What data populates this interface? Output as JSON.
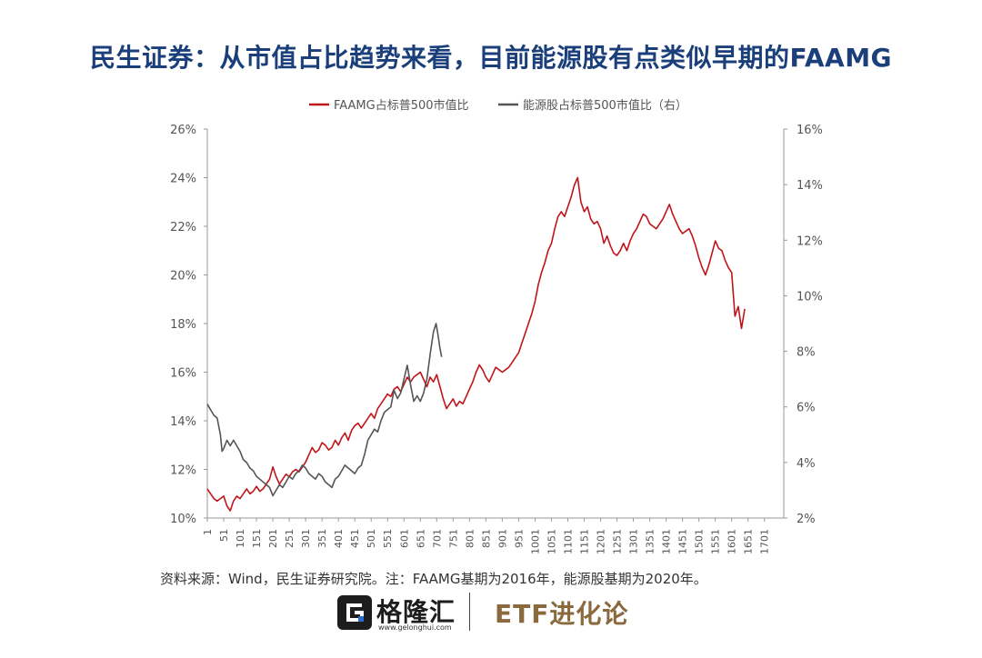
{
  "title": "民生证券：从市值占比趋势来看，目前能源股有点类似早期的FAAMG",
  "source_note": "资料来源：Wind，民生证券研究院。注：FAAMG基期为2016年，能源股基期为2020年。",
  "footer": {
    "logo_text": "格隆汇",
    "logo_url": "www.gelonghui.com",
    "brand_text": "ETF进化论"
  },
  "colors": {
    "faamg": "#c0141b",
    "energy": "#555555",
    "title": "#1b3f7a",
    "brand": "#8a6a3c"
  },
  "chart_data": {
    "type": "line",
    "legend_position": "top",
    "grid": false,
    "series": [
      {
        "name": "FAAMG占标普500市值比",
        "axis": "left",
        "points": [
          [
            1,
            11.2
          ],
          [
            11,
            11.0
          ],
          [
            21,
            10.8
          ],
          [
            31,
            10.7
          ],
          [
            41,
            10.8
          ],
          [
            51,
            10.9
          ],
          [
            61,
            10.5
          ],
          [
            71,
            10.3
          ],
          [
            81,
            10.7
          ],
          [
            91,
            10.9
          ],
          [
            101,
            10.8
          ],
          [
            111,
            11.0
          ],
          [
            121,
            11.2
          ],
          [
            131,
            11.0
          ],
          [
            141,
            11.1
          ],
          [
            151,
            11.3
          ],
          [
            161,
            11.1
          ],
          [
            171,
            11.2
          ],
          [
            181,
            11.4
          ],
          [
            191,
            11.6
          ],
          [
            201,
            12.1
          ],
          [
            211,
            11.7
          ],
          [
            221,
            11.4
          ],
          [
            231,
            11.6
          ],
          [
            241,
            11.8
          ],
          [
            251,
            11.7
          ],
          [
            261,
            11.9
          ],
          [
            271,
            12.0
          ],
          [
            281,
            11.9
          ],
          [
            291,
            12.1
          ],
          [
            301,
            12.3
          ],
          [
            311,
            12.6
          ],
          [
            321,
            12.9
          ],
          [
            331,
            12.7
          ],
          [
            341,
            12.8
          ],
          [
            351,
            13.1
          ],
          [
            361,
            13.0
          ],
          [
            371,
            12.8
          ],
          [
            381,
            12.9
          ],
          [
            391,
            13.2
          ],
          [
            401,
            13.0
          ],
          [
            411,
            13.3
          ],
          [
            421,
            13.5
          ],
          [
            431,
            13.2
          ],
          [
            441,
            13.6
          ],
          [
            451,
            13.8
          ],
          [
            461,
            13.9
          ],
          [
            471,
            13.7
          ],
          [
            481,
            13.9
          ],
          [
            491,
            14.1
          ],
          [
            501,
            14.3
          ],
          [
            511,
            14.1
          ],
          [
            521,
            14.5
          ],
          [
            531,
            14.7
          ],
          [
            541,
            14.9
          ],
          [
            551,
            15.1
          ],
          [
            561,
            15.0
          ],
          [
            571,
            15.3
          ],
          [
            581,
            15.4
          ],
          [
            591,
            15.2
          ],
          [
            601,
            15.5
          ],
          [
            611,
            15.8
          ],
          [
            621,
            15.6
          ],
          [
            631,
            15.8
          ],
          [
            641,
            15.9
          ],
          [
            651,
            16.0
          ],
          [
            661,
            15.7
          ],
          [
            671,
            15.4
          ],
          [
            681,
            15.8
          ],
          [
            691,
            15.6
          ],
          [
            701,
            15.9
          ],
          [
            711,
            15.4
          ],
          [
            721,
            14.9
          ],
          [
            731,
            14.5
          ],
          [
            741,
            14.7
          ],
          [
            751,
            14.9
          ],
          [
            761,
            14.6
          ],
          [
            771,
            14.8
          ],
          [
            781,
            14.7
          ],
          [
            791,
            15.0
          ],
          [
            801,
            15.3
          ],
          [
            811,
            15.6
          ],
          [
            821,
            16.0
          ],
          [
            831,
            16.3
          ],
          [
            841,
            16.1
          ],
          [
            851,
            15.8
          ],
          [
            861,
            15.6
          ],
          [
            871,
            15.9
          ],
          [
            881,
            16.2
          ],
          [
            891,
            16.1
          ],
          [
            901,
            16.0
          ],
          [
            911,
            16.1
          ],
          [
            921,
            16.2
          ],
          [
            931,
            16.4
          ],
          [
            941,
            16.6
          ],
          [
            951,
            16.8
          ],
          [
            961,
            17.2
          ],
          [
            971,
            17.6
          ],
          [
            981,
            18.0
          ],
          [
            991,
            18.4
          ],
          [
            1001,
            18.9
          ],
          [
            1011,
            19.6
          ],
          [
            1021,
            20.1
          ],
          [
            1031,
            20.5
          ],
          [
            1041,
            21.0
          ],
          [
            1051,
            21.3
          ],
          [
            1061,
            21.9
          ],
          [
            1071,
            22.4
          ],
          [
            1081,
            22.6
          ],
          [
            1091,
            22.4
          ],
          [
            1101,
            22.8
          ],
          [
            1111,
            23.2
          ],
          [
            1121,
            23.7
          ],
          [
            1131,
            24.0
          ],
          [
            1141,
            23.0
          ],
          [
            1151,
            22.6
          ],
          [
            1161,
            22.8
          ],
          [
            1171,
            22.3
          ],
          [
            1181,
            22.1
          ],
          [
            1191,
            22.2
          ],
          [
            1201,
            21.9
          ],
          [
            1211,
            21.3
          ],
          [
            1221,
            21.6
          ],
          [
            1231,
            21.2
          ],
          [
            1241,
            20.9
          ],
          [
            1251,
            20.8
          ],
          [
            1261,
            21.0
          ],
          [
            1271,
            21.3
          ],
          [
            1281,
            21.0
          ],
          [
            1291,
            21.4
          ],
          [
            1301,
            21.7
          ],
          [
            1311,
            21.9
          ],
          [
            1321,
            22.2
          ],
          [
            1331,
            22.5
          ],
          [
            1341,
            22.4
          ],
          [
            1351,
            22.1
          ],
          [
            1361,
            22.0
          ],
          [
            1371,
            21.9
          ],
          [
            1381,
            22.1
          ],
          [
            1391,
            22.3
          ],
          [
            1401,
            22.6
          ],
          [
            1411,
            22.9
          ],
          [
            1421,
            22.5
          ],
          [
            1431,
            22.2
          ],
          [
            1441,
            21.9
          ],
          [
            1451,
            21.7
          ],
          [
            1461,
            21.8
          ],
          [
            1471,
            21.9
          ],
          [
            1481,
            21.6
          ],
          [
            1491,
            21.2
          ],
          [
            1501,
            20.7
          ],
          [
            1511,
            20.3
          ],
          [
            1521,
            20.0
          ],
          [
            1531,
            20.4
          ],
          [
            1541,
            20.9
          ],
          [
            1551,
            21.4
          ],
          [
            1561,
            21.1
          ],
          [
            1571,
            21.0
          ],
          [
            1581,
            20.6
          ],
          [
            1591,
            20.3
          ],
          [
            1601,
            20.1
          ],
          [
            1611,
            18.3
          ],
          [
            1621,
            18.7
          ],
          [
            1631,
            17.8
          ],
          [
            1641,
            18.6
          ]
        ]
      },
      {
        "name": "能源股占标普500市值比（右）",
        "axis": "right",
        "points": [
          [
            1,
            6.1
          ],
          [
            11,
            5.9
          ],
          [
            21,
            5.7
          ],
          [
            31,
            5.6
          ],
          [
            41,
            5.0
          ],
          [
            46,
            4.4
          ],
          [
            51,
            4.5
          ],
          [
            61,
            4.8
          ],
          [
            71,
            4.6
          ],
          [
            81,
            4.8
          ],
          [
            91,
            4.6
          ],
          [
            101,
            4.4
          ],
          [
            111,
            4.1
          ],
          [
            121,
            4.0
          ],
          [
            131,
            3.8
          ],
          [
            141,
            3.7
          ],
          [
            151,
            3.5
          ],
          [
            161,
            3.4
          ],
          [
            171,
            3.3
          ],
          [
            181,
            3.2
          ],
          [
            191,
            3.1
          ],
          [
            201,
            2.8
          ],
          [
            211,
            3.0
          ],
          [
            221,
            3.2
          ],
          [
            231,
            3.1
          ],
          [
            241,
            3.3
          ],
          [
            251,
            3.5
          ],
          [
            261,
            3.4
          ],
          [
            271,
            3.6
          ],
          [
            281,
            3.7
          ],
          [
            291,
            3.9
          ],
          [
            301,
            3.8
          ],
          [
            311,
            3.6
          ],
          [
            321,
            3.5
          ],
          [
            331,
            3.4
          ],
          [
            341,
            3.6
          ],
          [
            351,
            3.5
          ],
          [
            361,
            3.3
          ],
          [
            371,
            3.2
          ],
          [
            381,
            3.1
          ],
          [
            391,
            3.4
          ],
          [
            401,
            3.5
          ],
          [
            411,
            3.7
          ],
          [
            421,
            3.9
          ],
          [
            431,
            3.8
          ],
          [
            441,
            3.7
          ],
          [
            451,
            3.6
          ],
          [
            461,
            3.8
          ],
          [
            471,
            3.9
          ],
          [
            481,
            4.3
          ],
          [
            491,
            4.8
          ],
          [
            501,
            5.0
          ],
          [
            511,
            5.2
          ],
          [
            521,
            5.1
          ],
          [
            531,
            5.5
          ],
          [
            541,
            5.8
          ],
          [
            551,
            5.9
          ],
          [
            561,
            6.0
          ],
          [
            571,
            6.6
          ],
          [
            581,
            6.3
          ],
          [
            591,
            6.5
          ],
          [
            601,
            7.0
          ],
          [
            611,
            7.5
          ],
          [
            621,
            6.8
          ],
          [
            631,
            6.2
          ],
          [
            641,
            6.4
          ],
          [
            651,
            6.2
          ],
          [
            661,
            6.5
          ],
          [
            671,
            7.0
          ],
          [
            681,
            7.9
          ],
          [
            691,
            8.7
          ],
          [
            699,
            9.0
          ],
          [
            705,
            8.6
          ],
          [
            711,
            8.1
          ],
          [
            716,
            7.8
          ]
        ]
      }
    ],
    "x_ticks": [
      "1",
      "51",
      "101",
      "151",
      "201",
      "251",
      "301",
      "351",
      "401",
      "451",
      "501",
      "551",
      "601",
      "651",
      "701",
      "751",
      "801",
      "851",
      "901",
      "951",
      "1001",
      "1051",
      "1101",
      "1151",
      "1201",
      "1251",
      "1301",
      "1351",
      "1401",
      "1451",
      "1501",
      "1551",
      "1601",
      "1651",
      "1701"
    ],
    "xlim": [
      1,
      1760
    ],
    "y_left": {
      "ylim": [
        10,
        26
      ],
      "ticks": [
        "10%",
        "12%",
        "14%",
        "16%",
        "18%",
        "20%",
        "22%",
        "24%",
        "26%"
      ]
    },
    "y_right": {
      "ylim": [
        2,
        16
      ],
      "ticks": [
        "2%",
        "4%",
        "6%",
        "8%",
        "10%",
        "12%",
        "14%",
        "16%"
      ]
    }
  }
}
